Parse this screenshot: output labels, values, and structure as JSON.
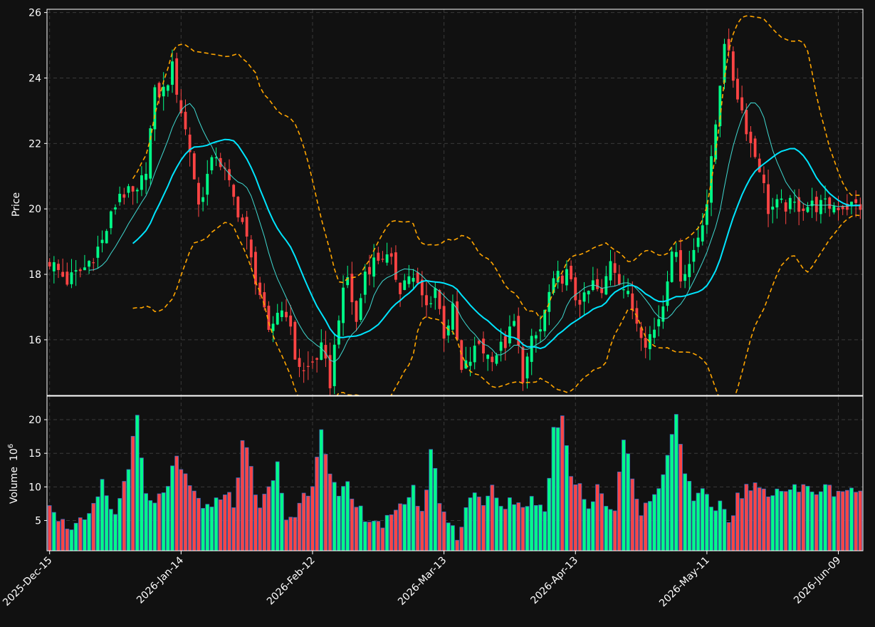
{
  "chart_data": {
    "type": "candlestick",
    "price_panel": {
      "ylabel": "Price",
      "ylim": [
        14.3,
        26.1
      ],
      "yticks": [
        16,
        18,
        20,
        22,
        24,
        26
      ],
      "ytick_labels": [
        "16",
        "18",
        "20",
        "22",
        "24",
        "26"
      ],
      "grid": true
    },
    "volume_panel": {
      "ylabel": "Volume",
      "ylabel_exponent": "10",
      "ylabel_exponent_power": "6",
      "ylim": [
        0.5,
        23.5
      ],
      "yticks": [
        5,
        10,
        15,
        20
      ],
      "ytick_labels": [
        "5",
        "10",
        "15",
        "20"
      ],
      "grid": true
    },
    "x_tick_labels": [
      {
        "index": 0,
        "label": "2025-Dec-15"
      },
      {
        "index": 30,
        "label": "2026-Jan-14"
      },
      {
        "index": 60,
        "label": "2026-Feb-12"
      },
      {
        "index": 90,
        "label": "2026-Mar-13"
      },
      {
        "index": 120,
        "label": "2026-Apr-13"
      },
      {
        "index": 150,
        "label": "2026-May-11"
      },
      {
        "index": 180,
        "label": "2026-Jun-09"
      }
    ],
    "x_range": [
      -0.6,
      185.6
    ],
    "colors": {
      "up": "#00ff88",
      "down": "#ff4444",
      "volume_edge": "#3b6bbf",
      "ma_fast": "#3fd8d0",
      "ma_slow": "#00e5ff",
      "bollinger": "#ffa500",
      "background": "#111111",
      "axes": "#ffffff",
      "grid": "#3a3a3a"
    },
    "anchors": [
      [
        0,
        18.4
      ],
      [
        4,
        17.8
      ],
      [
        8,
        18.2
      ],
      [
        12,
        19.0
      ],
      [
        16,
        20.5
      ],
      [
        20,
        20.4
      ],
      [
        22,
        21.3
      ],
      [
        24,
        23.5
      ],
      [
        26,
        23.6
      ],
      [
        28,
        24.3
      ],
      [
        30,
        23.0
      ],
      [
        32,
        21.8
      ],
      [
        34,
        20.1
      ],
      [
        36,
        21.0
      ],
      [
        38,
        21.7
      ],
      [
        40,
        21.1
      ],
      [
        42,
        20.3
      ],
      [
        44,
        19.6
      ],
      [
        46,
        18.4
      ],
      [
        48,
        17.4
      ],
      [
        50,
        16.1
      ],
      [
        52,
        16.9
      ],
      [
        54,
        16.9
      ],
      [
        56,
        15.5
      ],
      [
        58,
        15.0
      ],
      [
        60,
        15.3
      ],
      [
        62,
        15.7
      ],
      [
        64,
        14.7
      ],
      [
        66,
        16.8
      ],
      [
        68,
        17.9
      ],
      [
        70,
        16.5
      ],
      [
        72,
        18.1
      ],
      [
        74,
        18.4
      ],
      [
        76,
        18.6
      ],
      [
        78,
        18.3
      ],
      [
        80,
        17.6
      ],
      [
        82,
        18.0
      ],
      [
        84,
        17.6
      ],
      [
        86,
        17.0
      ],
      [
        88,
        17.6
      ],
      [
        90,
        16.2
      ],
      [
        92,
        16.9
      ],
      [
        94,
        15.0
      ],
      [
        96,
        15.4
      ],
      [
        98,
        15.9
      ],
      [
        100,
        15.5
      ],
      [
        102,
        15.6
      ],
      [
        104,
        15.9
      ],
      [
        106,
        16.5
      ],
      [
        108,
        14.9
      ],
      [
        110,
        15.9
      ],
      [
        112,
        16.3
      ],
      [
        114,
        17.4
      ],
      [
        116,
        17.9
      ],
      [
        118,
        18.0
      ],
      [
        120,
        17.3
      ],
      [
        122,
        17.2
      ],
      [
        124,
        17.7
      ],
      [
        126,
        17.3
      ],
      [
        128,
        18.5
      ],
      [
        130,
        17.9
      ],
      [
        132,
        17.3
      ],
      [
        134,
        16.6
      ],
      [
        136,
        16.0
      ],
      [
        138,
        16.3
      ],
      [
        140,
        17.1
      ],
      [
        142,
        18.9
      ],
      [
        144,
        18.0
      ],
      [
        146,
        18.3
      ],
      [
        148,
        19.2
      ],
      [
        150,
        20.2
      ],
      [
        152,
        22.6
      ],
      [
        154,
        25.2
      ],
      [
        156,
        24.0
      ],
      [
        158,
        23.0
      ],
      [
        160,
        22.0
      ],
      [
        162,
        21.3
      ],
      [
        164,
        20.0
      ],
      [
        166,
        20.1
      ]
    ],
    "candle_count": 186,
    "volume_anchors": [
      [
        0,
        8.2
      ],
      [
        3,
        4.5
      ],
      [
        6,
        4.2
      ],
      [
        9,
        5.0
      ],
      [
        12,
        10.2
      ],
      [
        15,
        5.5
      ],
      [
        18,
        13.6
      ],
      [
        20,
        19.7
      ],
      [
        22,
        8.4
      ],
      [
        24,
        7.0
      ],
      [
        27,
        10.8
      ],
      [
        29,
        13.5
      ],
      [
        31,
        11.0
      ],
      [
        34,
        8.0
      ],
      [
        37,
        6.2
      ],
      [
        40,
        9.8
      ],
      [
        42,
        7.0
      ],
      [
        44,
        17.5
      ],
      [
        46,
        12.5
      ],
      [
        48,
        7.0
      ],
      [
        50,
        9.3
      ],
      [
        52,
        13.2
      ],
      [
        54,
        5.3
      ],
      [
        56,
        5.9
      ],
      [
        58,
        8.7
      ],
      [
        60,
        10.6
      ],
      [
        62,
        19.6
      ],
      [
        64,
        11.5
      ],
      [
        66,
        8.2
      ],
      [
        68,
        9.8
      ],
      [
        70,
        6.7
      ],
      [
        73,
        5.5
      ],
      [
        76,
        4.5
      ],
      [
        79,
        5.5
      ],
      [
        81,
        8.0
      ],
      [
        83,
        10.0
      ],
      [
        85,
        5.4
      ],
      [
        87,
        15.6
      ],
      [
        89,
        8.3
      ],
      [
        91,
        4.7
      ],
      [
        93,
        2.7
      ],
      [
        95,
        7.0
      ],
      [
        97,
        9.8
      ],
      [
        99,
        6.4
      ],
      [
        101,
        10.3
      ],
      [
        103,
        6.2
      ],
      [
        105,
        8.5
      ],
      [
        107,
        7.2
      ],
      [
        109,
        8.0
      ],
      [
        111,
        8.1
      ],
      [
        113,
        6.0
      ],
      [
        115,
        18.2
      ],
      [
        117,
        21.0
      ],
      [
        119,
        12.0
      ],
      [
        121,
        10.4
      ],
      [
        123,
        6.8
      ],
      [
        125,
        9.5
      ],
      [
        127,
        7.4
      ],
      [
        129,
        6.9
      ],
      [
        131,
        17.3
      ],
      [
        133,
        12.2
      ],
      [
        135,
        5.5
      ],
      [
        137,
        8.5
      ],
      [
        139,
        9.2
      ],
      [
        141,
        15.5
      ],
      [
        143,
        20.5
      ],
      [
        145,
        13.0
      ],
      [
        147,
        7.0
      ],
      [
        149,
        9.6
      ],
      [
        151,
        6.0
      ],
      [
        153,
        7.9
      ],
      [
        155,
        5.0
      ],
      [
        157,
        8.4
      ],
      [
        159,
        9.6
      ]
    ],
    "ma_fast_window": 10,
    "ma_slow_window": 20,
    "bollinger_window": 20,
    "bollinger_k": 2
  }
}
